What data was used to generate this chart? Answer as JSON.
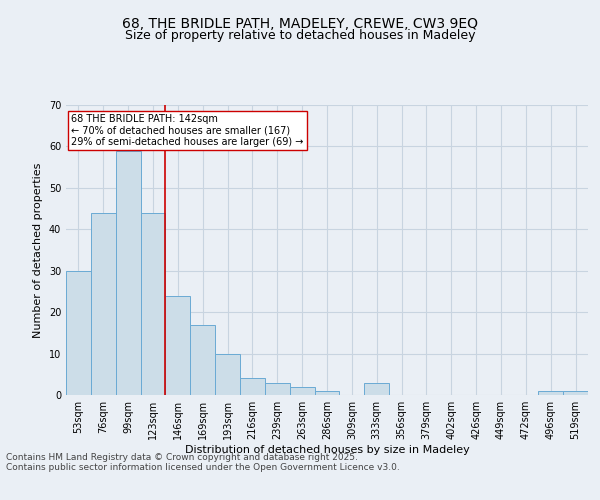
{
  "title_line1": "68, THE BRIDLE PATH, MADELEY, CREWE, CW3 9EQ",
  "title_line2": "Size of property relative to detached houses in Madeley",
  "xlabel": "Distribution of detached houses by size in Madeley",
  "ylabel": "Number of detached properties",
  "categories": [
    "53sqm",
    "76sqm",
    "99sqm",
    "123sqm",
    "146sqm",
    "169sqm",
    "193sqm",
    "216sqm",
    "239sqm",
    "263sqm",
    "286sqm",
    "309sqm",
    "333sqm",
    "356sqm",
    "379sqm",
    "402sqm",
    "426sqm",
    "449sqm",
    "472sqm",
    "496sqm",
    "519sqm"
  ],
  "values": [
    30,
    44,
    59,
    44,
    24,
    17,
    10,
    4,
    3,
    2,
    1,
    0,
    3,
    0,
    0,
    0,
    0,
    0,
    0,
    1,
    1
  ],
  "bar_color": "#ccdde8",
  "bar_edge_color": "#6aaad4",
  "grid_color": "#c8d4e0",
  "background_color": "#eaeff5",
  "vline_color": "#cc0000",
  "annotation_text": "68 THE BRIDLE PATH: 142sqm\n← 70% of detached houses are smaller (167)\n29% of semi-detached houses are larger (69) →",
  "annotation_box_color": "#ffffff",
  "annotation_box_edge": "#cc0000",
  "ylim": [
    0,
    70
  ],
  "yticks": [
    0,
    10,
    20,
    30,
    40,
    50,
    60,
    70
  ],
  "vline_pos": 3.5,
  "footer_line1": "Contains HM Land Registry data © Crown copyright and database right 2025.",
  "footer_line2": "Contains public sector information licensed under the Open Government Licence v3.0.",
  "title_fontsize": 10,
  "subtitle_fontsize": 9,
  "axis_label_fontsize": 8,
  "tick_fontsize": 7,
  "annotation_fontsize": 7,
  "footer_fontsize": 6.5
}
